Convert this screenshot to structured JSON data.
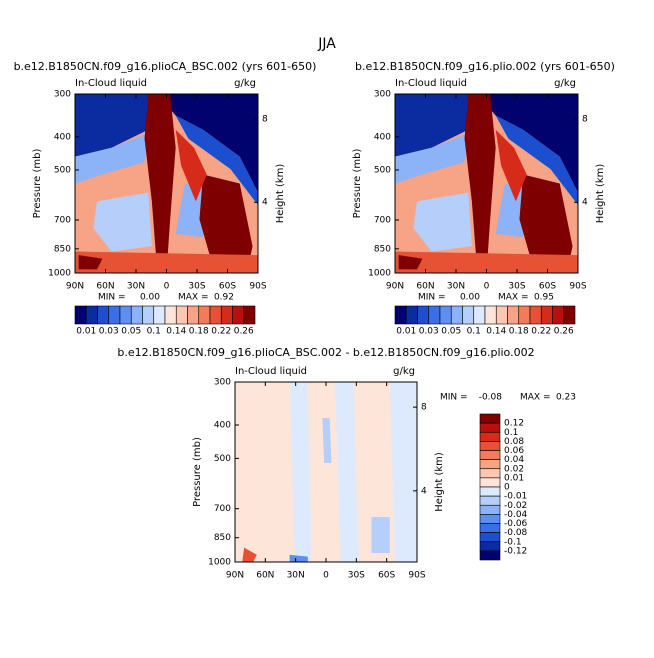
{
  "title": "JJA",
  "chart_data": [
    {
      "type": "contour",
      "title": "b.e12.B1850CN.f09_g16.plioCA_BSC.002 (yrs 601-650)",
      "left_label": "In-Cloud liquid",
      "units": "g/kg",
      "ylabel": "Pressure (mb)",
      "y2label": "Height (km)",
      "xlim": [
        90,
        -90
      ],
      "xticks": [
        {
          "value": 90,
          "label": "90N"
        },
        {
          "value": 60,
          "label": "60N"
        },
        {
          "value": 30,
          "label": "30N"
        },
        0,
        {
          "value": -30,
          "label": "30S"
        },
        {
          "value": -60,
          "label": "60S"
        },
        {
          "value": -90,
          "label": "90S"
        }
      ],
      "ylim": [
        300,
        1000
      ],
      "ylog": true,
      "yticks": [
        300,
        400,
        500,
        700,
        850,
        1000
      ],
      "y2lim": [
        0.6,
        9.2
      ],
      "y2ticks": [
        4,
        8
      ],
      "min_text": "MIN =",
      "min": {
        "value": 0,
        "label": "0.00"
      },
      "max_text": "MAX =",
      "max": 0.92,
      "colorbar": {
        "orientation": "horizontal",
        "colors": [
          "#02026e",
          "#0a2ca0",
          "#1b4fd0",
          "#3a6fe5",
          "#5e8ef0",
          "#8cb2f7",
          "#b5cffa",
          "#dde9fd",
          "#fde5da",
          "#fbc8b1",
          "#f7a386",
          "#f27c5a",
          "#e85234",
          "#d62a1a",
          "#b80f0f",
          "#7f0000"
        ],
        "ticks": [
          0.01,
          0.03,
          0.05,
          0.1,
          0.14,
          0.18,
          0.22,
          0.26
        ]
      }
    },
    {
      "type": "contour",
      "title": "b.e12.B1850CN.f09_g16.plio.002 (yrs 601-650)",
      "left_label": "In-Cloud liquid",
      "units": "g/kg",
      "ylabel": "Pressure (mb)",
      "y2label": "Height (km)",
      "xlim": [
        90,
        -90
      ],
      "xticks": [
        {
          "value": 90,
          "label": "90N"
        },
        {
          "value": 60,
          "label": "60N"
        },
        {
          "value": 30,
          "label": "30N"
        },
        0,
        {
          "value": -30,
          "label": "30S"
        },
        {
          "value": -60,
          "label": "60S"
        },
        {
          "value": -90,
          "label": "90S"
        }
      ],
      "ylim": [
        300,
        1000
      ],
      "ylog": true,
      "yticks": [
        300,
        400,
        500,
        700,
        850,
        1000
      ],
      "y2lim": [
        0.6,
        9.2
      ],
      "y2ticks": [
        4,
        8
      ],
      "min_text": "MIN =",
      "min": {
        "value": 0,
        "label": "0.00"
      },
      "max_text": "MAX =",
      "max": 0.95,
      "colorbar": {
        "orientation": "horizontal",
        "colors": [
          "#02026e",
          "#0a2ca0",
          "#1b4fd0",
          "#3a6fe5",
          "#5e8ef0",
          "#8cb2f7",
          "#b5cffa",
          "#dde9fd",
          "#fde5da",
          "#fbc8b1",
          "#f7a386",
          "#f27c5a",
          "#e85234",
          "#d62a1a",
          "#b80f0f",
          "#7f0000"
        ],
        "ticks": [
          0.01,
          0.03,
          0.05,
          0.1,
          0.14,
          0.18,
          0.22,
          0.26
        ]
      }
    },
    {
      "type": "contour",
      "title": "b.e12.B1850CN.f09_g16.plioCA_BSC.002 - b.e12.B1850CN.f09_g16.plio.002",
      "left_label": "In-Cloud liquid",
      "units": "g/kg",
      "ylabel": "Pressure (mb)",
      "y2label": "Height (km)",
      "xlim": [
        90,
        -90
      ],
      "xticks": [
        {
          "value": 90,
          "label": "90N"
        },
        {
          "value": 60,
          "label": "60N"
        },
        {
          "value": 30,
          "label": "30N"
        },
        0,
        {
          "value": -30,
          "label": "30S"
        },
        {
          "value": -60,
          "label": "60S"
        },
        {
          "value": -90,
          "label": "90S"
        }
      ],
      "ylim": [
        300,
        1000
      ],
      "ylog": true,
      "yticks": [
        300,
        400,
        500,
        700,
        850,
        1000
      ],
      "y2lim": [
        0.6,
        9.2
      ],
      "y2ticks": [
        4,
        8
      ],
      "min_text": "MIN =",
      "min": -0.08,
      "max_text": "MAX =",
      "max": 0.23,
      "colorbar": {
        "orientation": "vertical",
        "colors": [
          "#7f0000",
          "#b80f0f",
          "#d62a1a",
          "#e85234",
          "#f27c5a",
          "#f7a386",
          "#fbc8b1",
          "#fde5da",
          "#dde9fd",
          "#b5cffa",
          "#8cb2f7",
          "#5e8ef0",
          "#3a6fe5",
          "#1b4fd0",
          "#0a2ca0",
          "#02026e"
        ],
        "ticks": [
          0.12,
          0.1,
          0.08,
          0.06,
          0.04,
          0.02,
          0.01,
          0,
          -0.01,
          -0.02,
          -0.04,
          -0.06,
          -0.08,
          -0.1,
          -0.12
        ]
      }
    }
  ]
}
